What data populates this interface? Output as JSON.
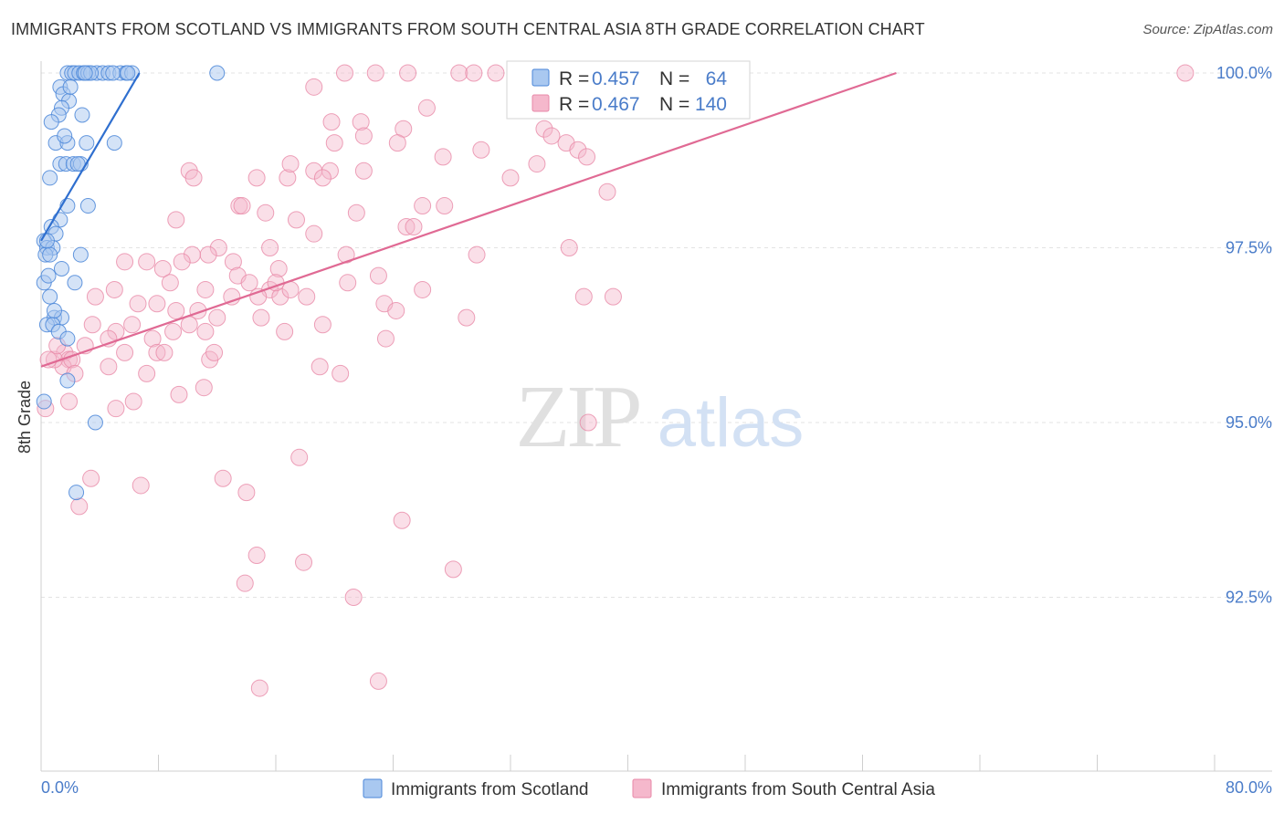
{
  "title": "IMMIGRANTS FROM SCOTLAND VS IMMIGRANTS FROM SOUTH CENTRAL ASIA 8TH GRADE CORRELATION CHART",
  "source": "Source: ZipAtlas.com",
  "watermark": {
    "zip": "ZIP",
    "atlas": "atlas"
  },
  "colors": {
    "scotland_fill": "#a9c8f0",
    "scotland_stroke": "#4a86d8",
    "scotland_line": "#2f6fcf",
    "asia_fill": "#f5b8cc",
    "asia_stroke": "#e889a8",
    "asia_line": "#e06a94",
    "tick_text": "#4a7cc9",
    "grid": "#e3e3e3"
  },
  "stats_legend": {
    "rows": [
      {
        "r_label": "R =",
        "r_value": "0.457",
        "n_label": "N =",
        "n_value": "64"
      },
      {
        "r_label": "R =",
        "r_value": "0.467",
        "n_label": "N =",
        "n_value": "140"
      }
    ]
  },
  "chart_data": {
    "type": "scatter",
    "title": "IMMIGRANTS FROM SCOTLAND VS IMMIGRANTS FROM SOUTH CENTRAL ASIA 8TH GRADE CORRELATION CHART",
    "xlabel": "",
    "ylabel": "8th Grade",
    "xlim": [
      0,
      80
    ],
    "ylim": [
      90.2,
      100.35
    ],
    "x_ticks": [
      0,
      80
    ],
    "x_tick_labels": [
      "0.0%",
      "80.0%"
    ],
    "y_ticks": [
      92.5,
      95.0,
      97.5,
      100.0
    ],
    "y_tick_labels": [
      "92.5%",
      "95.0%",
      "97.5%",
      "100.0%"
    ],
    "grid": true,
    "legend_position": "bottom",
    "series": [
      {
        "name": "Immigrants from Scotland",
        "r": 0.457,
        "n": 64,
        "trend": {
          "x0": 0.0,
          "y0": 97.6,
          "x1": 6.7,
          "y1": 100.0
        },
        "points": [
          [
            1.8,
            100.0
          ],
          [
            2.1,
            100.0
          ],
          [
            2.3,
            100.0
          ],
          [
            2.6,
            100.0
          ],
          [
            2.9,
            100.0
          ],
          [
            3.2,
            100.0
          ],
          [
            3.8,
            100.0
          ],
          [
            4.2,
            100.0
          ],
          [
            4.6,
            100.0
          ],
          [
            5.4,
            100.0
          ],
          [
            5.8,
            100.0
          ],
          [
            6.2,
            100.0
          ],
          [
            12.0,
            100.0
          ],
          [
            1.3,
            99.8
          ],
          [
            1.5,
            99.7
          ],
          [
            1.9,
            99.6
          ],
          [
            1.4,
            99.5
          ],
          [
            1.2,
            99.4
          ],
          [
            2.8,
            99.4
          ],
          [
            0.7,
            99.3
          ],
          [
            1.0,
            99.0
          ],
          [
            1.8,
            99.0
          ],
          [
            3.1,
            99.0
          ],
          [
            5.0,
            99.0
          ],
          [
            1.3,
            98.7
          ],
          [
            1.7,
            98.7
          ],
          [
            2.2,
            98.7
          ],
          [
            2.7,
            98.7
          ],
          [
            0.6,
            98.5
          ],
          [
            1.8,
            98.1
          ],
          [
            3.2,
            98.1
          ],
          [
            1.3,
            97.9
          ],
          [
            0.7,
            97.8
          ],
          [
            1.0,
            97.7
          ],
          [
            0.2,
            97.6
          ],
          [
            0.4,
            97.5
          ],
          [
            0.8,
            97.5
          ],
          [
            2.7,
            97.4
          ],
          [
            0.3,
            97.4
          ],
          [
            0.6,
            97.4
          ],
          [
            1.4,
            97.2
          ],
          [
            0.2,
            97.0
          ],
          [
            2.3,
            97.0
          ],
          [
            0.6,
            96.8
          ],
          [
            0.9,
            96.5
          ],
          [
            1.4,
            96.5
          ],
          [
            0.4,
            96.4
          ],
          [
            0.8,
            96.4
          ],
          [
            1.2,
            96.3
          ],
          [
            1.8,
            96.2
          ],
          [
            1.8,
            95.6
          ],
          [
            3.7,
            95.0
          ],
          [
            2.4,
            94.0
          ],
          [
            0.2,
            95.3
          ],
          [
            0.4,
            97.6
          ],
          [
            2.0,
            99.8
          ],
          [
            3.4,
            100.0
          ],
          [
            2.5,
            98.7
          ],
          [
            0.5,
            97.1
          ],
          [
            1.6,
            99.1
          ],
          [
            3.0,
            100.0
          ],
          [
            4.9,
            100.0
          ],
          [
            5.9,
            100.0
          ],
          [
            0.9,
            96.6
          ]
        ]
      },
      {
        "name": "Immigrants from South Central Asia",
        "r": 0.467,
        "n": 140,
        "trend": {
          "x0": 0.0,
          "y0": 95.8,
          "x1": 58.3,
          "y1": 100.0
        },
        "points": [
          [
            25.0,
            100.0
          ],
          [
            28.5,
            100.0
          ],
          [
            29.5,
            100.0
          ],
          [
            31.0,
            100.0
          ],
          [
            33.0,
            100.0
          ],
          [
            35.5,
            100.0
          ],
          [
            40.0,
            100.0
          ],
          [
            78.0,
            100.0
          ],
          [
            18.6,
            99.8
          ],
          [
            26.3,
            99.5
          ],
          [
            38.3,
            99.5
          ],
          [
            19.8,
            99.3
          ],
          [
            21.8,
            99.3
          ],
          [
            24.7,
            99.2
          ],
          [
            34.3,
            99.2
          ],
          [
            22.0,
            99.1
          ],
          [
            20.0,
            99.0
          ],
          [
            24.3,
            99.0
          ],
          [
            35.8,
            99.0
          ],
          [
            36.6,
            98.9
          ],
          [
            30.0,
            98.9
          ],
          [
            27.4,
            98.8
          ],
          [
            37.2,
            98.8
          ],
          [
            33.8,
            98.7
          ],
          [
            10.1,
            98.6
          ],
          [
            18.6,
            98.6
          ],
          [
            19.7,
            98.6
          ],
          [
            10.4,
            98.5
          ],
          [
            14.7,
            98.5
          ],
          [
            16.8,
            98.5
          ],
          [
            22.0,
            98.6
          ],
          [
            17.0,
            98.7
          ],
          [
            19.2,
            98.5
          ],
          [
            32.0,
            98.5
          ],
          [
            38.6,
            98.3
          ],
          [
            13.5,
            98.1
          ],
          [
            26.0,
            98.1
          ],
          [
            15.3,
            98.0
          ],
          [
            21.5,
            98.0
          ],
          [
            17.4,
            97.9
          ],
          [
            9.2,
            97.9
          ],
          [
            24.9,
            97.8
          ],
          [
            25.4,
            97.8
          ],
          [
            18.6,
            97.7
          ],
          [
            12.1,
            97.5
          ],
          [
            15.6,
            97.5
          ],
          [
            11.4,
            97.4
          ],
          [
            20.8,
            97.4
          ],
          [
            29.7,
            97.4
          ],
          [
            7.2,
            97.3
          ],
          [
            10.3,
            97.4
          ],
          [
            13.1,
            97.3
          ],
          [
            36.0,
            97.5
          ],
          [
            5.7,
            97.3
          ],
          [
            8.3,
            97.2
          ],
          [
            16.2,
            97.2
          ],
          [
            13.4,
            97.1
          ],
          [
            14.2,
            97.0
          ],
          [
            23.0,
            97.1
          ],
          [
            26.0,
            96.9
          ],
          [
            15.6,
            96.9
          ],
          [
            20.9,
            97.0
          ],
          [
            5.0,
            96.9
          ],
          [
            11.2,
            96.9
          ],
          [
            13.0,
            96.8
          ],
          [
            16.3,
            96.8
          ],
          [
            23.4,
            96.7
          ],
          [
            3.7,
            96.8
          ],
          [
            6.6,
            96.7
          ],
          [
            24.2,
            96.6
          ],
          [
            37.0,
            96.8
          ],
          [
            39.0,
            96.8
          ],
          [
            14.8,
            96.8
          ],
          [
            17.0,
            96.9
          ],
          [
            7.9,
            96.7
          ],
          [
            9.2,
            96.6
          ],
          [
            10.7,
            96.6
          ],
          [
            12.0,
            96.5
          ],
          [
            15.0,
            96.5
          ],
          [
            3.5,
            96.4
          ],
          [
            5.1,
            96.3
          ],
          [
            6.2,
            96.4
          ],
          [
            9.0,
            96.3
          ],
          [
            10.1,
            96.4
          ],
          [
            11.2,
            96.3
          ],
          [
            16.6,
            96.3
          ],
          [
            19.2,
            96.4
          ],
          [
            29.0,
            96.5
          ],
          [
            4.6,
            96.2
          ],
          [
            23.5,
            96.2
          ],
          [
            7.6,
            96.2
          ],
          [
            3.0,
            96.1
          ],
          [
            1.6,
            96.0
          ],
          [
            5.7,
            96.0
          ],
          [
            1.9,
            95.9
          ],
          [
            7.9,
            96.0
          ],
          [
            8.4,
            96.0
          ],
          [
            1.5,
            95.8
          ],
          [
            2.1,
            95.9
          ],
          [
            11.5,
            95.9
          ],
          [
            11.8,
            96.0
          ],
          [
            0.9,
            95.9
          ],
          [
            4.6,
            95.8
          ],
          [
            19.0,
            95.8
          ],
          [
            7.2,
            95.7
          ],
          [
            20.4,
            95.7
          ],
          [
            2.3,
            95.7
          ],
          [
            11.1,
            95.5
          ],
          [
            9.4,
            95.4
          ],
          [
            1.9,
            95.3
          ],
          [
            6.3,
            95.3
          ],
          [
            5.1,
            95.2
          ],
          [
            37.3,
            95.0
          ],
          [
            17.6,
            94.5
          ],
          [
            12.4,
            94.2
          ],
          [
            3.4,
            94.2
          ],
          [
            6.8,
            94.1
          ],
          [
            14.0,
            94.0
          ],
          [
            2.6,
            93.8
          ],
          [
            24.6,
            93.6
          ],
          [
            14.7,
            93.1
          ],
          [
            17.9,
            93.0
          ],
          [
            28.1,
            92.9
          ],
          [
            13.9,
            92.7
          ],
          [
            21.3,
            92.5
          ],
          [
            23.0,
            91.3
          ],
          [
            14.9,
            91.2
          ],
          [
            22.8,
            100.0
          ],
          [
            32.5,
            100.0
          ],
          [
            0.3,
            95.2
          ],
          [
            0.5,
            95.9
          ],
          [
            1.1,
            96.1
          ],
          [
            8.8,
            97.0
          ],
          [
            16.0,
            97.0
          ],
          [
            13.7,
            98.1
          ],
          [
            27.5,
            98.1
          ],
          [
            9.6,
            97.3
          ],
          [
            18.1,
            96.8
          ],
          [
            34.8,
            99.1
          ],
          [
            20.7,
            100.0
          ]
        ]
      }
    ]
  },
  "legend": {
    "items": [
      {
        "label": "Immigrants from Scotland"
      },
      {
        "label": "Immigrants from South Central Asia"
      }
    ]
  }
}
